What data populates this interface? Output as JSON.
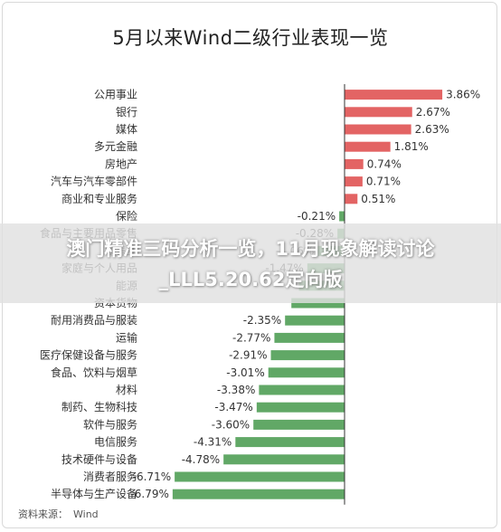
{
  "title": "5月以来Wind二级行业表现一览",
  "source_label": "资料来源：",
  "source_value": "Wind",
  "overlay_text": "澳门精准三码分析一览，11月现象解读讨论_LLL5.20.62定向版",
  "colors": {
    "positive": "#e36464",
    "negative": "#61a866",
    "axis": "#333333",
    "text": "#333333"
  },
  "chart_data": {
    "type": "bar",
    "orientation": "horizontal",
    "title": "5月以来Wind二级行业表现一览",
    "xlabel": "",
    "ylabel": "",
    "unit": "%",
    "xlim": [
      -6.79,
      3.86
    ],
    "categories": [
      "公用事业",
      "银行",
      "媒体",
      "多元金融",
      "房地产",
      "汽车与汽车零部件",
      "商业和专业服务",
      "保险",
      "食品与主要用品零售",
      "零售业",
      "家庭与个人用品",
      "能源",
      "资本货物",
      "耐用消费品与服装",
      "运输",
      "医疗保健设备与服务",
      "食品、饮料与烟草",
      "材料",
      "制药、生物科技",
      "软件与服务",
      "电信服务",
      "技术硬件与设备",
      "消费者服务",
      "半导体与生产设备"
    ],
    "values": [
      3.86,
      2.67,
      2.63,
      1.81,
      0.74,
      0.71,
      0.51,
      -0.21,
      -0.28,
      -1.06,
      -1.47,
      -1.8,
      -2.1,
      -2.35,
      -2.77,
      -2.91,
      -3.01,
      -3.38,
      -3.47,
      -3.6,
      -4.31,
      -4.78,
      -6.71,
      -6.79
    ],
    "value_labels": [
      "3.86%",
      "2.67%",
      "2.63%",
      "1.81%",
      "0.74%",
      "0.71%",
      "0.51%",
      "-0.21%",
      "-0.28%",
      "-1.06%",
      "-1.47%",
      "",
      "",
      "-2.35%",
      "-2.77%",
      "-2.91%",
      "-3.01%",
      "-3.38%",
      "-3.47%",
      "-3.60%",
      "-4.31%",
      "-4.78%",
      "-6.71%",
      "-6.79%"
    ]
  }
}
